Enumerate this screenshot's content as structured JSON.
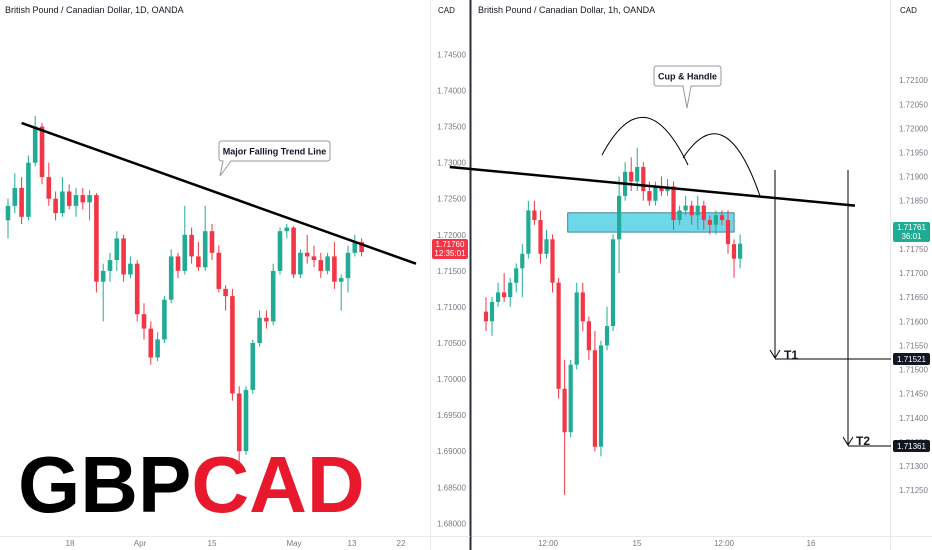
{
  "brand": {
    "part1": "GBP",
    "part2": "CAD",
    "color1": "#000000",
    "color2": "#e8192c"
  },
  "colors": {
    "up": "#22ab94",
    "down": "#f23645",
    "trend": "#000000",
    "zone": "#6fd8e8"
  },
  "left": {
    "title": "British Pound / Canadian Dollar, 1D, OANDA",
    "currency": "CAD",
    "y_ticks": [
      "1.74500",
      "1.74000",
      "1.73500",
      "1.73000",
      "1.72500",
      "1.72000",
      "1.71500",
      "1.71000",
      "1.70500",
      "1.70000",
      "1.69500",
      "1.69000",
      "1.68500",
      "1.68000"
    ],
    "x_ticks": [
      "18",
      "Apr",
      "15",
      "May",
      "13",
      "22"
    ],
    "price_tag": {
      "price": "1.71760",
      "countdown": "12:35:01",
      "color": "#f23645"
    },
    "annotation": "Major Falling Trend Line",
    "trend_line": {
      "from": [
        2,
        1.7355
      ],
      "to": [
        60,
        1.716
      ]
    }
  },
  "right": {
    "title": "British Pound / Canadian Dollar, 1h, OANDA",
    "currency": "CAD",
    "y_ticks": [
      "1.72100",
      "1.72050",
      "1.72000",
      "1.71950",
      "1.71900",
      "1.71850",
      "1.71800",
      "1.71750",
      "1.71700",
      "1.71650",
      "1.71600",
      "1.71550",
      "1.71500",
      "1.71450",
      "1.71400",
      "1.71350",
      "1.71300",
      "1.71250"
    ],
    "x_ticks": [
      "12:00",
      "15",
      "12:00",
      "16"
    ],
    "price_tag": {
      "price": "1.71761",
      "countdown": "36:01",
      "color": "#22ab94"
    },
    "annotation": "Cup & Handle",
    "targets": [
      {
        "label": "T1",
        "price": "1.71521"
      },
      {
        "label": "T2",
        "price": "1.71361"
      }
    ],
    "trend_line": {
      "from": [
        -6,
        1.7192
      ],
      "to": [
        61,
        1.7184
      ]
    },
    "zone": {
      "x0": 13.5,
      "x1": 41,
      "y0": 1.71785,
      "y1": 1.71825
    }
  },
  "chart_data": [
    {
      "type": "candlestick",
      "title": "British Pound / Canadian Dollar, 1D, OANDA",
      "ylim": [
        1.6795,
        1.747
      ],
      "series": [
        {
          "name": "GBPCAD 1D",
          "ohlc": [
            [
              1.722,
              1.725,
              1.7195,
              1.724
            ],
            [
              1.724,
              1.7285,
              1.723,
              1.7265
            ],
            [
              1.7265,
              1.728,
              1.7215,
              1.7225
            ],
            [
              1.7225,
              1.731,
              1.722,
              1.73
            ],
            [
              1.73,
              1.7365,
              1.7295,
              1.735
            ],
            [
              1.735,
              1.7355,
              1.727,
              1.728
            ],
            [
              1.728,
              1.73,
              1.724,
              1.725
            ],
            [
              1.725,
              1.726,
              1.722,
              1.723
            ],
            [
              1.723,
              1.728,
              1.7225,
              1.726
            ],
            [
              1.726,
              1.727,
              1.7235,
              1.724
            ],
            [
              1.724,
              1.7265,
              1.7225,
              1.7255
            ],
            [
              1.7255,
              1.7265,
              1.7235,
              1.7245
            ],
            [
              1.7245,
              1.7262,
              1.722,
              1.7255
            ],
            [
              1.7255,
              1.7258,
              1.712,
              1.7135
            ],
            [
              1.7135,
              1.716,
              1.708,
              1.715
            ],
            [
              1.715,
              1.7175,
              1.7135,
              1.7165
            ],
            [
              1.7165,
              1.7205,
              1.715,
              1.7195
            ],
            [
              1.7195,
              1.72,
              1.7135,
              1.7145
            ],
            [
              1.7145,
              1.717,
              1.714,
              1.716
            ],
            [
              1.716,
              1.7165,
              1.708,
              1.709
            ],
            [
              1.709,
              1.7105,
              1.7055,
              1.707
            ],
            [
              1.707,
              1.708,
              1.702,
              1.703
            ],
            [
              1.703,
              1.7065,
              1.7025,
              1.7055
            ],
            [
              1.7055,
              1.7115,
              1.705,
              1.711
            ],
            [
              1.711,
              1.718,
              1.7105,
              1.717
            ],
            [
              1.717,
              1.7175,
              1.714,
              1.715
            ],
            [
              1.715,
              1.724,
              1.7145,
              1.72
            ],
            [
              1.72,
              1.721,
              1.716,
              1.717
            ],
            [
              1.717,
              1.719,
              1.715,
              1.7155
            ],
            [
              1.7155,
              1.724,
              1.715,
              1.7205
            ],
            [
              1.7205,
              1.7215,
              1.7165,
              1.7175
            ],
            [
              1.7175,
              1.7185,
              1.712,
              1.7125
            ],
            [
              1.7125,
              1.713,
              1.7095,
              1.7115
            ],
            [
              1.7115,
              1.7125,
              1.697,
              1.698
            ],
            [
              1.698,
              1.699,
              1.688,
              1.69
            ],
            [
              1.69,
              1.699,
              1.6895,
              1.6985
            ],
            [
              1.6985,
              1.7055,
              1.698,
              1.705
            ],
            [
              1.705,
              1.7095,
              1.7045,
              1.7085
            ],
            [
              1.7085,
              1.7095,
              1.707,
              1.708
            ],
            [
              1.708,
              1.716,
              1.7075,
              1.715
            ],
            [
              1.715,
              1.721,
              1.7145,
              1.7205
            ],
            [
              1.7205,
              1.7215,
              1.7195,
              1.721
            ],
            [
              1.721,
              1.7212,
              1.714,
              1.7145
            ],
            [
              1.7145,
              1.718,
              1.714,
              1.7175
            ],
            [
              1.7175,
              1.72,
              1.716,
              1.717
            ],
            [
              1.717,
              1.7185,
              1.7155,
              1.7165
            ],
            [
              1.7165,
              1.7175,
              1.714,
              1.715
            ],
            [
              1.715,
              1.7175,
              1.7145,
              1.717
            ],
            [
              1.717,
              1.719,
              1.7125,
              1.7135
            ],
            [
              1.7135,
              1.7145,
              1.7095,
              1.714
            ],
            [
              1.714,
              1.7185,
              1.712,
              1.7175
            ],
            [
              1.7175,
              1.72,
              1.717,
              1.719
            ],
            [
              1.719,
              1.7195,
              1.717,
              1.7176
            ]
          ]
        }
      ]
    },
    {
      "type": "candlestick",
      "title": "British Pound / Canadian Dollar, 1h, OANDA",
      "ylim": [
        1.71215,
        1.72175
      ],
      "series": [
        {
          "name": "GBPCAD 1h",
          "ohlc": [
            [
              1.7162,
              1.7165,
              1.7158,
              1.716
            ],
            [
              1.716,
              1.7165,
              1.7157,
              1.7164
            ],
            [
              1.7164,
              1.7168,
              1.7163,
              1.7166
            ],
            [
              1.7166,
              1.717,
              1.7164,
              1.7165
            ],
            [
              1.7165,
              1.7169,
              1.7163,
              1.7168
            ],
            [
              1.7168,
              1.7172,
              1.7166,
              1.7171
            ],
            [
              1.7171,
              1.7176,
              1.7165,
              1.7174
            ],
            [
              1.7174,
              1.7185,
              1.7173,
              1.7183
            ],
            [
              1.7183,
              1.7185,
              1.718,
              1.7181
            ],
            [
              1.7181,
              1.7183,
              1.7172,
              1.7174
            ],
            [
              1.7174,
              1.7179,
              1.7173,
              1.7177
            ],
            [
              1.7177,
              1.7178,
              1.7166,
              1.7168
            ],
            [
              1.7168,
              1.7169,
              1.7144,
              1.7146
            ],
            [
              1.7146,
              1.7152,
              1.7124,
              1.7137
            ],
            [
              1.7137,
              1.7152,
              1.7136,
              1.7151
            ],
            [
              1.7151,
              1.7168,
              1.715,
              1.7166
            ],
            [
              1.7166,
              1.7168,
              1.7158,
              1.716
            ],
            [
              1.716,
              1.7161,
              1.7152,
              1.7154
            ],
            [
              1.7154,
              1.7158,
              1.7133,
              1.7134
            ],
            [
              1.7134,
              1.7156,
              1.7132,
              1.7155
            ],
            [
              1.7155,
              1.7163,
              1.7154,
              1.7159
            ],
            [
              1.7159,
              1.7178,
              1.7158,
              1.7177
            ],
            [
              1.7177,
              1.719,
              1.717,
              1.7186
            ],
            [
              1.7186,
              1.7193,
              1.7185,
              1.7191
            ],
            [
              1.7191,
              1.7194,
              1.7187,
              1.7189
            ],
            [
              1.7189,
              1.7196,
              1.7187,
              1.7192
            ],
            [
              1.7192,
              1.7193,
              1.7185,
              1.7187
            ],
            [
              1.7187,
              1.7189,
              1.7184,
              1.7185
            ],
            [
              1.7185,
              1.7189,
              1.7184,
              1.7188
            ],
            [
              1.7188,
              1.719,
              1.7186,
              1.7187
            ],
            [
              1.7187,
              1.71895,
              1.7186,
              1.7188
            ],
            [
              1.7188,
              1.7189,
              1.7179,
              1.7181
            ],
            [
              1.7181,
              1.7184,
              1.718,
              1.7183
            ],
            [
              1.7183,
              1.7186,
              1.7182,
              1.7184
            ],
            [
              1.7184,
              1.7185,
              1.718,
              1.7182
            ],
            [
              1.7182,
              1.7186,
              1.7179,
              1.7184
            ],
            [
              1.7184,
              1.7185,
              1.7179,
              1.7181
            ],
            [
              1.7181,
              1.7182,
              1.7178,
              1.718
            ],
            [
              1.718,
              1.7183,
              1.7178,
              1.7182
            ],
            [
              1.7182,
              1.7183,
              1.718,
              1.7181
            ],
            [
              1.7181,
              1.7183,
              1.7174,
              1.7176
            ],
            [
              1.7176,
              1.7177,
              1.7169,
              1.7173
            ],
            [
              1.7173,
              1.7178,
              1.7171,
              1.71761
            ]
          ]
        }
      ]
    }
  ]
}
